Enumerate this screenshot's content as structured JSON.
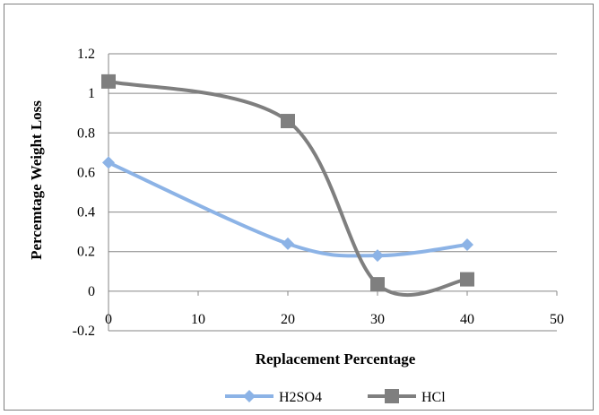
{
  "chart_data": {
    "type": "line",
    "smooth": true,
    "xlabel": "Replacement Percentage",
    "ylabel": "Percemtage Weight Loss",
    "xlim": [
      0,
      50
    ],
    "ylim": [
      -0.2,
      1.2
    ],
    "xticks": [
      0,
      10,
      20,
      30,
      40,
      50
    ],
    "yticks": [
      -0.2,
      0,
      0.2,
      0.4,
      0.6,
      0.8,
      1,
      1.2
    ],
    "grid": "horizontal",
    "legend_position": "bottom",
    "series": [
      {
        "name": "H2SO4",
        "color": "#8cb3e6",
        "marker": "diamond",
        "x": [
          0,
          20,
          30,
          40
        ],
        "y": [
          0.65,
          0.24,
          0.18,
          0.235
        ]
      },
      {
        "name": "HCl",
        "color": "#7f7f7f",
        "marker": "square",
        "x": [
          0,
          20,
          30,
          40
        ],
        "y": [
          1.06,
          0.86,
          0.035,
          0.06
        ]
      }
    ]
  }
}
